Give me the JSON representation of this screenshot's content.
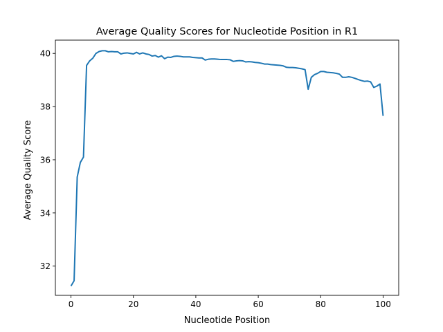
{
  "chart_data": {
    "type": "line",
    "title": "Average Quality Scores for Nucleotide Position in R1",
    "xlabel": "Nucleotide Position",
    "ylabel": "Average Quality Score",
    "xlim": [
      -5,
      105
    ],
    "ylim": [
      30.9,
      40.5
    ],
    "xticks": [
      0,
      20,
      40,
      60,
      80,
      100
    ],
    "yticks": [
      32,
      34,
      36,
      38,
      40
    ],
    "grid": false,
    "legend": "none",
    "series": [
      {
        "color": "#1f77b4",
        "x": [
          0,
          1,
          2,
          3,
          4,
          5,
          6,
          7,
          8,
          9,
          10,
          11,
          12,
          13,
          14,
          15,
          16,
          17,
          18,
          19,
          20,
          21,
          22,
          23,
          24,
          25,
          26,
          27,
          28,
          29,
          30,
          31,
          32,
          33,
          34,
          35,
          36,
          37,
          38,
          39,
          40,
          41,
          42,
          43,
          44,
          45,
          46,
          47,
          48,
          49,
          50,
          51,
          52,
          53,
          54,
          55,
          56,
          57,
          58,
          59,
          60,
          61,
          62,
          63,
          64,
          65,
          66,
          67,
          68,
          69,
          70,
          71,
          72,
          73,
          74,
          75,
          76,
          77,
          78,
          79,
          80,
          81,
          82,
          83,
          84,
          85,
          86,
          87,
          88,
          89,
          90,
          91,
          92,
          93,
          94,
          95,
          96,
          97,
          98,
          99,
          100
        ],
        "y": [
          31.25,
          31.45,
          35.35,
          35.9,
          36.1,
          39.55,
          39.72,
          39.82,
          40.0,
          40.07,
          40.1,
          40.1,
          40.06,
          40.07,
          40.06,
          40.06,
          39.98,
          40.01,
          40.02,
          40.0,
          39.98,
          40.04,
          39.98,
          40.02,
          39.98,
          39.96,
          39.9,
          39.92,
          39.86,
          39.91,
          39.8,
          39.86,
          39.85,
          39.89,
          39.9,
          39.89,
          39.87,
          39.87,
          39.87,
          39.85,
          39.84,
          39.83,
          39.83,
          39.75,
          39.78,
          39.79,
          39.79,
          39.78,
          39.77,
          39.77,
          39.77,
          39.76,
          39.7,
          39.72,
          39.73,
          39.72,
          39.68,
          39.69,
          39.68,
          39.66,
          39.65,
          39.63,
          39.6,
          39.6,
          39.58,
          39.57,
          39.56,
          39.55,
          39.53,
          39.48,
          39.47,
          39.47,
          39.46,
          39.44,
          39.42,
          39.39,
          38.65,
          39.1,
          39.2,
          39.25,
          39.32,
          39.32,
          39.29,
          39.28,
          39.27,
          39.25,
          39.22,
          39.1,
          39.1,
          39.12,
          39.1,
          39.06,
          39.02,
          38.98,
          38.95,
          38.96,
          38.93,
          38.72,
          38.77,
          38.85,
          37.65
        ]
      }
    ]
  }
}
